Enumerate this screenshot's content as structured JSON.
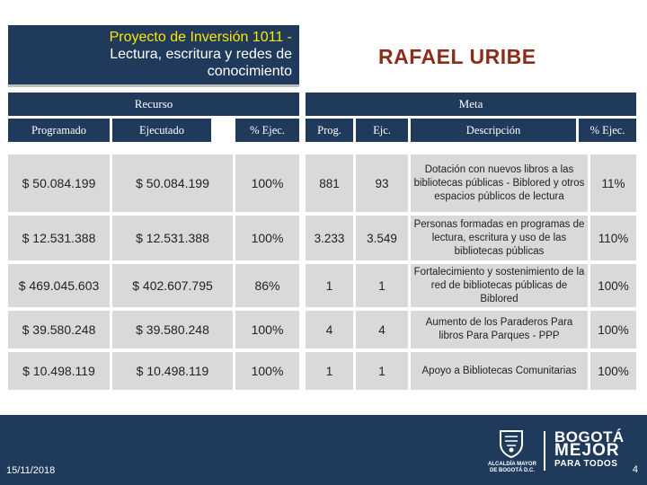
{
  "title_box": {
    "line1": "Proyecto de Inversión 1011 -",
    "line2": "Lectura, escritura y redes de",
    "line3": "conocimiento"
  },
  "entity": "RAFAEL URIBE",
  "sections": {
    "recurso": "Recurso",
    "meta": "Meta"
  },
  "columns": {
    "programado": "Programado",
    "ejecutado": "Ejecutado",
    "pct_ejec_recurso": "% Ejec.",
    "prog": "Prog.",
    "ejc": "Ejc.",
    "descripcion": "Descripción",
    "pct_ejec_meta": "% Ejec."
  },
  "rows": [
    {
      "programado": "$ 50.084.199",
      "ejecutado": "$ 50.084.199",
      "pct_recurso": "100%",
      "prog": "881",
      "ejc": "93",
      "descripcion": "Dotación con nuevos libros a las bibliotecas públicas - Biblored y otros espacios públicos de lectura",
      "pct_meta": "11%"
    },
    {
      "programado": "$ 12.531.388",
      "ejecutado": "$ 12.531.388",
      "pct_recurso": "100%",
      "prog": "3.233",
      "ejc": "3.549",
      "descripcion": "Personas formadas en programas de lectura, escritura y uso de las bibliotecas públicas",
      "pct_meta": "110%"
    },
    {
      "programado": "$ 469.045.603",
      "ejecutado": "$ 402.607.795",
      "pct_recurso": "86%",
      "prog": "1",
      "ejc": "1",
      "descripcion": "Fortalecimiento y sostenimiento de la red de bibliotecas públicas de Biblored",
      "pct_meta": "100%"
    },
    {
      "programado": "$ 39.580.248",
      "ejecutado": "$ 39.580.248",
      "pct_recurso": "100%",
      "prog": "4",
      "ejc": "4",
      "descripcion": "Aumento de los Paraderos Para libros Para Parques - PPP",
      "pct_meta": "100%"
    },
    {
      "programado": "$ 10.498.119",
      "ejecutado": "$ 10.498.119",
      "pct_recurso": "100%",
      "prog": "1",
      "ejc": "1",
      "descripcion": "Apoyo a Bibliotecas Comunitarias",
      "pct_meta": "100%"
    }
  ],
  "footer": {
    "date": "15/11/2018",
    "page_number": "4",
    "alcaldia": "ALCALDÍA MAYOR DE BOGOTÁ D.C.",
    "logo_line1": "BOGOTÁ",
    "logo_line2": "MEJOR",
    "logo_line3": "PARA TODOS"
  },
  "colors": {
    "header_bg": "#203a5c",
    "cell_bg": "#d9d9d9",
    "title_highlight": "#ffe600",
    "entity_text": "#8b2d1a"
  },
  "icons": [
    "bogota-shield-icon"
  ]
}
